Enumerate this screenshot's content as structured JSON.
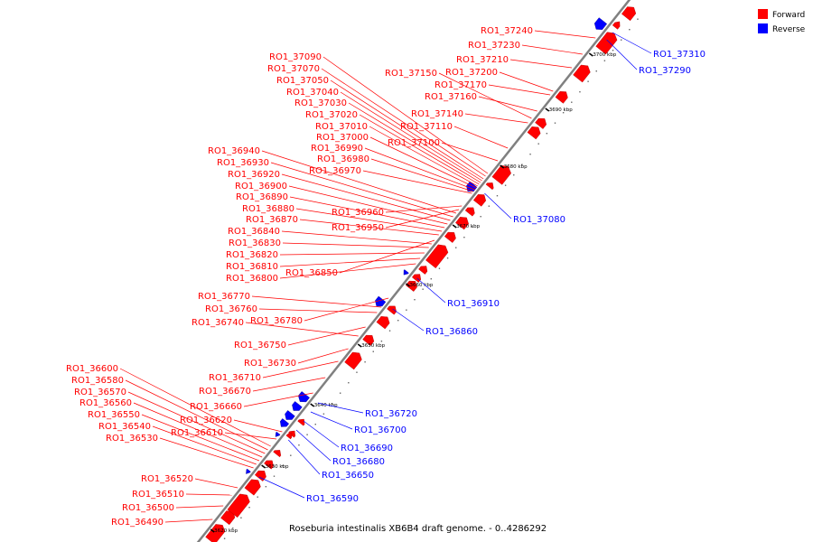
{
  "caption": "Roseburia intestinalis XB6B4 draft genome. - 0..4286292",
  "legend": [
    {
      "label": "Forward",
      "color": "#ff0000"
    },
    {
      "label": "Reverse",
      "color": "#0000ff"
    }
  ],
  "colors": {
    "forward": "#ff0000",
    "reverse": "#0000ff",
    "backbone": "#808080"
  },
  "ticks": [
    "3620 kbp",
    "3630 kbp",
    "3640 kbp",
    "3650 kbp",
    "3660 kbp",
    "3670 kbp",
    "3680 kbp",
    "3690 kbp",
    "3700 kbp"
  ],
  "forward_genes": [
    "RO1_37240",
    "RO1_37230",
    "RO1_37210",
    "RO1_37200",
    "RO1_37170",
    "RO1_37160",
    "RO1_37150",
    "RO1_37140",
    "RO1_37110",
    "RO1_37100",
    "RO1_37090",
    "RO1_37070",
    "RO1_37050",
    "RO1_37040",
    "RO1_37030",
    "RO1_37020",
    "RO1_37010",
    "RO1_37000",
    "RO1_36990",
    "RO1_36980",
    "RO1_36970",
    "RO1_36960",
    "RO1_36950",
    "RO1_36940",
    "RO1_36930",
    "RO1_36920",
    "RO1_36900",
    "RO1_36890",
    "RO1_36880",
    "RO1_36870",
    "RO1_36850",
    "RO1_36840",
    "RO1_36830",
    "RO1_36820",
    "RO1_36810",
    "RO1_36800",
    "RO1_36780",
    "RO1_36770",
    "RO1_36760",
    "RO1_36750",
    "RO1_36740",
    "RO1_36730",
    "RO1_36710",
    "RO1_36670",
    "RO1_36660",
    "RO1_36620",
    "RO1_36610",
    "RO1_36600",
    "RO1_36580",
    "RO1_36570",
    "RO1_36560",
    "RO1_36550",
    "RO1_36540",
    "RO1_36530",
    "RO1_36520",
    "RO1_36510",
    "RO1_36500",
    "RO1_36490"
  ],
  "reverse_genes": [
    "RO1_37310",
    "RO1_37290",
    "RO1_37080",
    "RO1_36910",
    "RO1_36860",
    "RO1_36720",
    "RO1_36700",
    "RO1_36690",
    "RO1_36680",
    "RO1_36650",
    "RO1_36590"
  ]
}
